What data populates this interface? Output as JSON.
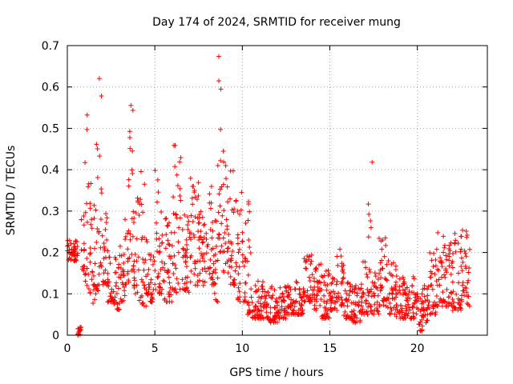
{
  "chart_data": {
    "type": "scatter",
    "title": "Day 174 of 2024, SRMTID for receiver mung",
    "xlabel": "GPS time / hours",
    "ylabel": "SRMTID / TECUs",
    "xlim": [
      0,
      24
    ],
    "ylim": [
      0,
      0.7
    ],
    "xticks": [
      0,
      5,
      10,
      15,
      20
    ],
    "xtick_labels": [
      "0",
      "5",
      "10",
      "15",
      "20"
    ],
    "yticks": [
      0,
      0.1,
      0.2,
      0.3,
      0.4,
      0.5,
      0.6,
      0.7
    ],
    "ytick_labels": [
      "0",
      "0.1",
      "0.2",
      "0.3",
      "0.4",
      "0.5",
      "0.6",
      "0.7"
    ],
    "grid": true,
    "marker": "+",
    "color": "#ff0000",
    "envelope_note": "approximate per-segment value ranges read from the plot (hours, min, max)",
    "envelope": [
      [
        0.0,
        0.18,
        0.23
      ],
      [
        0.6,
        0.0,
        0.02
      ],
      [
        0.8,
        0.15,
        0.3
      ],
      [
        1.0,
        0.12,
        0.56
      ],
      [
        1.2,
        0.1,
        0.4
      ],
      [
        1.4,
        0.07,
        0.32
      ],
      [
        1.6,
        0.1,
        0.48
      ],
      [
        1.8,
        0.12,
        0.65
      ],
      [
        2.0,
        0.12,
        0.3
      ],
      [
        2.3,
        0.08,
        0.22
      ],
      [
        2.6,
        0.06,
        0.2
      ],
      [
        3.0,
        0.08,
        0.22
      ],
      [
        3.3,
        0.12,
        0.3
      ],
      [
        3.5,
        0.15,
        0.56
      ],
      [
        3.8,
        0.1,
        0.36
      ],
      [
        4.1,
        0.07,
        0.4
      ],
      [
        4.5,
        0.08,
        0.25
      ],
      [
        5.0,
        0.1,
        0.4
      ],
      [
        5.5,
        0.08,
        0.3
      ],
      [
        6.0,
        0.1,
        0.47
      ],
      [
        6.5,
        0.1,
        0.3
      ],
      [
        7.0,
        0.12,
        0.4
      ],
      [
        7.5,
        0.12,
        0.3
      ],
      [
        8.0,
        0.12,
        0.36
      ],
      [
        8.4,
        0.08,
        0.3
      ],
      [
        8.6,
        0.2,
        0.68
      ],
      [
        8.9,
        0.15,
        0.45
      ],
      [
        9.3,
        0.12,
        0.4
      ],
      [
        9.7,
        0.08,
        0.35
      ],
      [
        10.2,
        0.05,
        0.34
      ],
      [
        10.5,
        0.04,
        0.15
      ],
      [
        11.0,
        0.04,
        0.13
      ],
      [
        11.5,
        0.03,
        0.12
      ],
      [
        12.0,
        0.04,
        0.12
      ],
      [
        12.5,
        0.05,
        0.12
      ],
      [
        13.0,
        0.05,
        0.13
      ],
      [
        13.5,
        0.08,
        0.2
      ],
      [
        14.0,
        0.06,
        0.18
      ],
      [
        14.5,
        0.04,
        0.16
      ],
      [
        15.0,
        0.06,
        0.15
      ],
      [
        15.4,
        0.07,
        0.21
      ],
      [
        15.8,
        0.04,
        0.13
      ],
      [
        16.3,
        0.03,
        0.12
      ],
      [
        16.8,
        0.05,
        0.19
      ],
      [
        17.2,
        0.05,
        0.42
      ],
      [
        17.5,
        0.05,
        0.16
      ],
      [
        17.8,
        0.07,
        0.27
      ],
      [
        18.3,
        0.05,
        0.18
      ],
      [
        18.8,
        0.04,
        0.15
      ],
      [
        19.3,
        0.04,
        0.12
      ],
      [
        19.7,
        0.04,
        0.15
      ],
      [
        20.0,
        0.01,
        0.1
      ],
      [
        20.3,
        0.03,
        0.12
      ],
      [
        20.7,
        0.05,
        0.2
      ],
      [
        21.1,
        0.07,
        0.25
      ],
      [
        21.5,
        0.07,
        0.24
      ],
      [
        22.0,
        0.06,
        0.25
      ],
      [
        22.5,
        0.08,
        0.26
      ],
      [
        22.8,
        0.07,
        0.25
      ]
    ]
  }
}
